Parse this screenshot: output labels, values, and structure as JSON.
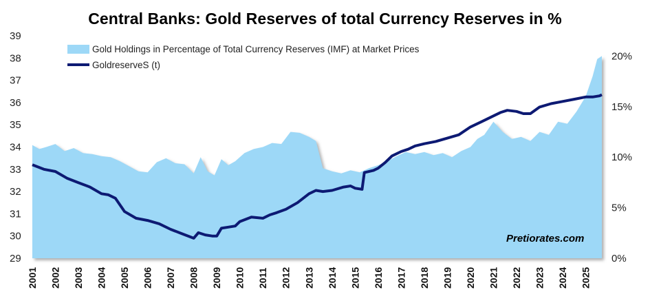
{
  "chart_data": {
    "type": "area+line",
    "title": "Central Banks: Gold Reserves of total Currency Reserves in %",
    "watermark": "Pretiorates.com",
    "colors": {
      "area": "#9dd8f7",
      "line": "#0d1a73",
      "area_shadow": "#b9b9b9"
    },
    "x_ticks": [
      "2001",
      "2002",
      "2003",
      "2004",
      "2005",
      "2006",
      "2007",
      "2008",
      "2009",
      "2010",
      "2011",
      "2012",
      "2013",
      "2014",
      "2015",
      "2016",
      "2017",
      "2018",
      "2019",
      "2020",
      "2021",
      "2022",
      "2023",
      "2024",
      "2025"
    ],
    "y_left": {
      "min": 29,
      "max": 39,
      "ticks": [
        "29",
        "30",
        "31",
        "32",
        "33",
        "34",
        "35",
        "36",
        "37",
        "38",
        "39"
      ]
    },
    "y_right": {
      "min": 0,
      "max": 22,
      "ticks": [
        "0%",
        "5%",
        "10%",
        "15%",
        "20%"
      ],
      "tick_values": [
        0,
        5,
        10,
        15,
        20
      ]
    },
    "series": [
      {
        "name": "Gold Holdings in Percentage of Total Currency Reserves (IMF) at Market Prices",
        "type": "area",
        "axis": "right",
        "x": [
          2001.0,
          2001.3,
          2001.6,
          2002.0,
          2002.4,
          2002.8,
          2003.2,
          2003.6,
          2004.0,
          2004.4,
          2004.8,
          2005.2,
          2005.6,
          2006.0,
          2006.4,
          2006.8,
          2007.2,
          2007.6,
          2008.0,
          2008.3,
          2008.6,
          2008.9,
          2009.2,
          2009.5,
          2009.8,
          2010.2,
          2010.6,
          2011.0,
          2011.4,
          2011.8,
          2012.2,
          2012.6,
          2013.0,
          2013.3,
          2013.6,
          2014.0,
          2014.4,
          2014.8,
          2015.2,
          2015.6,
          2016.0,
          2016.4,
          2016.8,
          2017.2,
          2017.6,
          2018.0,
          2018.4,
          2018.8,
          2019.2,
          2019.6,
          2020.0,
          2020.3,
          2020.6,
          2021.0,
          2021.4,
          2021.8,
          2022.2,
          2022.6,
          2023.0,
          2023.4,
          2023.8,
          2024.2,
          2024.6,
          2025.0,
          2025.3,
          2025.5,
          2025.7
        ],
        "values": [
          11.2,
          10.8,
          11.0,
          11.3,
          10.6,
          10.9,
          10.4,
          10.3,
          10.1,
          10.0,
          9.6,
          9.1,
          8.6,
          8.5,
          9.5,
          9.9,
          9.4,
          9.3,
          8.4,
          10.0,
          8.6,
          8.2,
          9.8,
          9.2,
          9.6,
          10.4,
          10.8,
          11.0,
          11.4,
          11.3,
          12.5,
          12.4,
          12.0,
          11.6,
          8.9,
          8.6,
          8.4,
          8.7,
          8.5,
          8.9,
          9.2,
          9.6,
          10.1,
          10.5,
          10.3,
          10.5,
          10.2,
          10.4,
          10.0,
          10.6,
          11.0,
          11.8,
          12.2,
          13.5,
          12.5,
          11.8,
          12.0,
          11.6,
          12.5,
          12.2,
          13.5,
          13.3,
          14.5,
          16.0,
          18.0,
          19.7,
          20.0
        ]
      },
      {
        "name": "GoldreserveS (t)",
        "type": "line",
        "axis": "left",
        "x": [
          2001.0,
          2001.5,
          2002.0,
          2002.5,
          2003.0,
          2003.5,
          2004.0,
          2004.3,
          2004.6,
          2004.8,
          2005.0,
          2005.5,
          2006.0,
          2006.5,
          2007.0,
          2007.5,
          2008.0,
          2008.2,
          2008.5,
          2008.8,
          2009.0,
          2009.2,
          2009.5,
          2009.8,
          2010.0,
          2010.5,
          2011.0,
          2011.3,
          2011.6,
          2012.0,
          2012.5,
          2013.0,
          2013.3,
          2013.6,
          2014.0,
          2014.5,
          2014.8,
          2015.0,
          2015.3,
          2015.4,
          2015.8,
          2016.0,
          2016.3,
          2016.6,
          2017.0,
          2017.3,
          2017.6,
          2018.0,
          2018.5,
          2019.0,
          2019.5,
          2020.0,
          2020.5,
          2021.0,
          2021.3,
          2021.6,
          2022.0,
          2022.3,
          2022.6,
          2023.0,
          2023.5,
          2024.0,
          2024.5,
          2025.0,
          2025.3,
          2025.6,
          2025.7
        ],
        "values": [
          33.2,
          33.0,
          32.9,
          32.6,
          32.4,
          32.2,
          31.9,
          31.85,
          31.7,
          31.4,
          31.1,
          30.8,
          30.7,
          30.55,
          30.3,
          30.1,
          29.9,
          30.15,
          30.05,
          30.0,
          30.0,
          30.35,
          30.4,
          30.45,
          30.65,
          30.85,
          30.8,
          30.95,
          31.05,
          31.2,
          31.5,
          31.9,
          32.05,
          32.0,
          32.05,
          32.2,
          32.25,
          32.15,
          32.1,
          32.85,
          32.95,
          33.05,
          33.3,
          33.6,
          33.8,
          33.9,
          34.05,
          34.15,
          34.25,
          34.4,
          34.55,
          34.9,
          35.15,
          35.4,
          35.55,
          35.65,
          35.6,
          35.5,
          35.5,
          35.8,
          35.95,
          36.05,
          36.15,
          36.25,
          36.25,
          36.3,
          36.35
        ]
      }
    ]
  }
}
